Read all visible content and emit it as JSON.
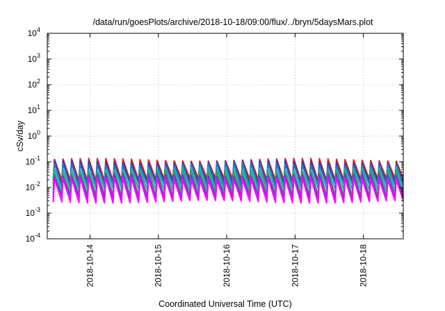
{
  "chart_data": {
    "type": "line",
    "title": "/data/run/goesPlots/archive/2018-10-18/09:00/flux/../bryn/5daysMars.plot",
    "xlabel": "Coordinated Universal Time (UTC)",
    "ylabel": "cSv/day",
    "yscale": "log",
    "ylim": [
      0.0001,
      10000
    ],
    "y_ticks": [
      {
        "base": "10",
        "exp": "-4"
      },
      {
        "base": "10",
        "exp": "-3"
      },
      {
        "base": "10",
        "exp": "-2"
      },
      {
        "base": "10",
        "exp": "-1"
      },
      {
        "base": "10",
        "exp": "0"
      },
      {
        "base": "10",
        "exp": "1"
      },
      {
        "base": "10",
        "exp": "2"
      },
      {
        "base": "10",
        "exp": "3"
      },
      {
        "base": "10",
        "exp": "4"
      }
    ],
    "xlim": [
      "2018-10-13T09:00",
      "2018-10-18T14:00"
    ],
    "x_ticks": [
      "2018-10-14",
      "2018-10-15",
      "2018-10-16",
      "2018-10-17",
      "2018-10-18"
    ],
    "grid": true,
    "legend": "none",
    "sawtooth_cycle_hours": 3,
    "series": [
      {
        "color": "#e02020",
        "peak": 0.12,
        "trough": 0.02
      },
      {
        "color": "#3a3aa8",
        "peak": 0.1,
        "trough": 0.015
      },
      {
        "color": "#1f78c8",
        "peak": 0.08,
        "trough": 0.012
      },
      {
        "color": "#20b0b0",
        "peak": 0.055,
        "trough": 0.008
      },
      {
        "color": "#32a852",
        "peak": 0.04,
        "trough": 0.005
      },
      {
        "color": "#8a2be2",
        "peak": 0.03,
        "trough": 0.004
      },
      {
        "color": "#ff00ff",
        "peak": 0.022,
        "trough": 0.0028
      }
    ]
  }
}
